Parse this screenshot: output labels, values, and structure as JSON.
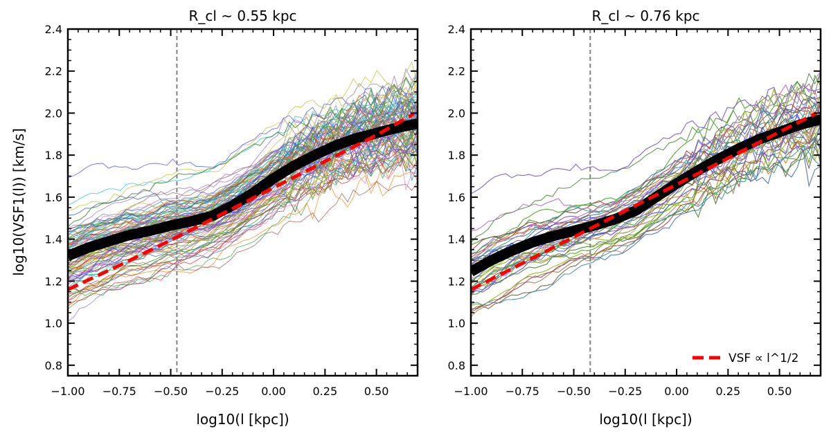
{
  "figure": {
    "ylabel": "log10(VSF1(l)) [km/s]",
    "xlabel": "log10(l [kpc])",
    "legend_label": "VSF ∝ l^1/2"
  },
  "chart_data": [
    {
      "type": "line",
      "title": "R_cl ~ 0.55 kpc",
      "xlabel": "log10(l [kpc])",
      "ylabel": "log10(VSF1(l)) [km/s]",
      "xlim": [
        -1.0,
        0.7
      ],
      "ylim": [
        0.75,
        2.4
      ],
      "xticks": [
        "−1.00",
        "−0.75",
        "−0.50",
        "−0.25",
        "0.00",
        "0.25",
        "0.50"
      ],
      "yticks": [
        "0.8",
        "1.0",
        "1.2",
        "1.4",
        "1.6",
        "1.8",
        "2.0",
        "2.2",
        "2.4"
      ],
      "vline_x": -0.47,
      "series": [
        {
          "role": "mean",
          "color": "#000000",
          "x": [
            -1.0,
            -0.9,
            -0.8,
            -0.7,
            -0.6,
            -0.5,
            -0.4,
            -0.3,
            -0.2,
            -0.1,
            0.0,
            0.1,
            0.2,
            0.3,
            0.4,
            0.5,
            0.6,
            0.7
          ],
          "y": [
            1.32,
            1.36,
            1.39,
            1.42,
            1.44,
            1.465,
            1.485,
            1.51,
            1.56,
            1.62,
            1.69,
            1.75,
            1.8,
            1.845,
            1.88,
            1.905,
            1.93,
            1.95
          ]
        },
        {
          "role": "fit",
          "color": "#ff0000",
          "x": [
            -1.0,
            -0.75,
            -0.5,
            -0.25,
            0.0,
            0.25,
            0.5,
            0.68
          ],
          "y": [
            1.16,
            1.275,
            1.395,
            1.52,
            1.645,
            1.77,
            1.895,
            1.995
          ]
        }
      ],
      "note": "~120 thin colored individual cloud VSF curves spanning roughly ±0.15–0.3 dex around the mean"
    },
    {
      "type": "line",
      "title": "R_cl ~ 0.76 kpc",
      "xlabel": "log10(l [kpc])",
      "ylabel": "",
      "xlim": [
        -1.0,
        0.7
      ],
      "ylim": [
        0.75,
        2.4
      ],
      "xticks": [
        "−1.00",
        "−0.75",
        "−0.50",
        "−0.25",
        "0.00",
        "0.25",
        "0.50"
      ],
      "yticks": [
        "0.8",
        "1.0",
        "1.2",
        "1.4",
        "1.6",
        "1.8",
        "2.0",
        "2.2",
        "2.4"
      ],
      "vline_x": -0.42,
      "series": [
        {
          "role": "mean",
          "color": "#000000",
          "x": [
            -1.0,
            -0.9,
            -0.8,
            -0.7,
            -0.6,
            -0.5,
            -0.4,
            -0.3,
            -0.2,
            -0.1,
            0.0,
            0.1,
            0.2,
            0.3,
            0.4,
            0.5,
            0.6,
            0.7
          ],
          "y": [
            1.245,
            1.3,
            1.345,
            1.385,
            1.415,
            1.44,
            1.465,
            1.495,
            1.535,
            1.6,
            1.665,
            1.725,
            1.78,
            1.83,
            1.875,
            1.91,
            1.945,
            1.97
          ]
        },
        {
          "role": "fit",
          "color": "#ff0000",
          "x": [
            -1.0,
            -0.75,
            -0.5,
            -0.25,
            0.0,
            0.25,
            0.5,
            0.68
          ],
          "y": [
            1.16,
            1.285,
            1.41,
            1.535,
            1.66,
            1.785,
            1.91,
            2.0
          ]
        }
      ],
      "legend": {
        "position": "lower right"
      },
      "note": "~120 thin colored individual cloud VSF curves spanning roughly ±0.2–0.35 dex around the mean"
    }
  ]
}
